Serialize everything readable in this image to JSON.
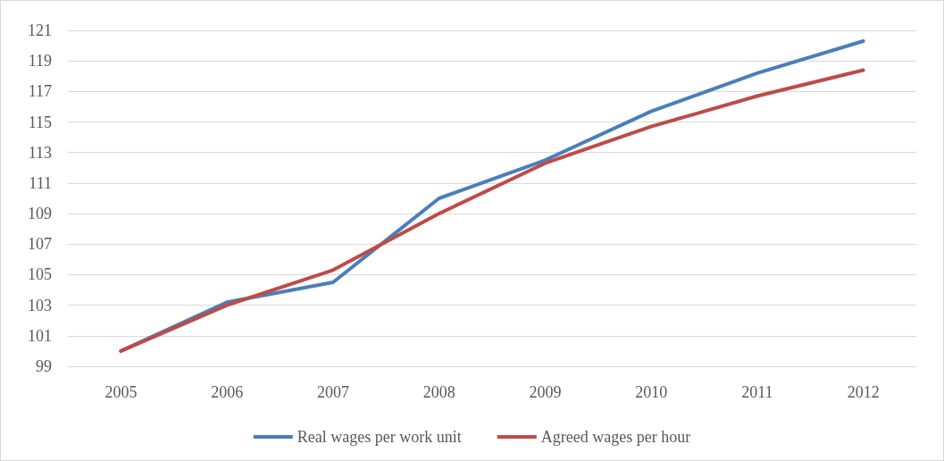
{
  "chart_data": {
    "type": "line",
    "categories": [
      "2005",
      "2006",
      "2007",
      "2008",
      "2009",
      "2010",
      "2011",
      "2012"
    ],
    "series": [
      {
        "name": "Real wages per work unit",
        "color": "#4a7ebb",
        "values": [
          100,
          103.2,
          104.5,
          110.0,
          112.5,
          115.7,
          118.2,
          120.3
        ]
      },
      {
        "name": "Agreed wages per hour",
        "color": "#be4b48",
        "values": [
          100,
          103.0,
          105.3,
          109.0,
          112.3,
          114.7,
          116.7,
          118.4
        ]
      }
    ],
    "ylim": [
      99,
      121
    ],
    "yticks": [
      99,
      101,
      103,
      105,
      107,
      109,
      111,
      113,
      115,
      117,
      119,
      121
    ],
    "grid": "y",
    "legend": "bottom",
    "marker": "none",
    "line_style": "solid"
  }
}
